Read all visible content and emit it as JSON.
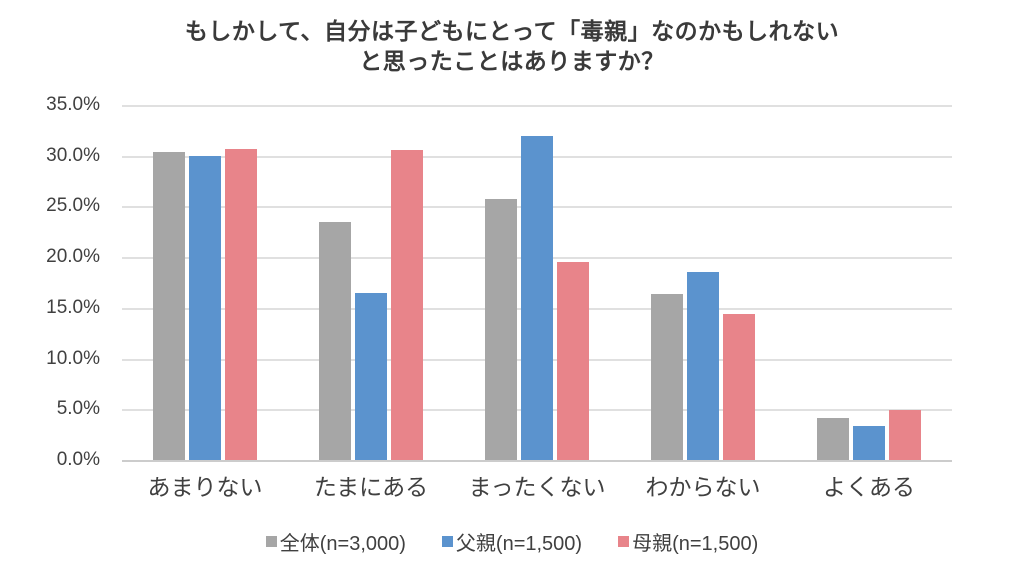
{
  "chart_data": {
    "type": "bar",
    "title_line1": "もしかして、自分は子どもにとって「毒親」なのかもしれない",
    "title_line2": "と思ったことはありますか？",
    "categories": [
      "あまりない",
      "たまにある",
      "まったくない",
      "わからない",
      "よくある"
    ],
    "series": [
      {
        "name": "全体(n=3,000)",
        "color": "#a6a6a6",
        "values": [
          30.4,
          23.5,
          25.7,
          16.4,
          4.1
        ]
      },
      {
        "name": "父親(n=1,500)",
        "color": "#5b93ce",
        "values": [
          30.0,
          16.5,
          31.9,
          18.5,
          3.4
        ]
      },
      {
        "name": "母親(n=1,500)",
        "color": "#e8848a",
        "values": [
          30.7,
          30.6,
          19.5,
          14.4,
          4.9
        ]
      }
    ],
    "ylabel": "",
    "xlabel": "",
    "ylim": [
      0,
      35
    ],
    "y_tick_step": 5,
    "y_tick_labels": [
      "35.0%",
      "30.0%",
      "25.0%",
      "20.0%",
      "15.0%",
      "10.0%",
      "5.0%",
      "0.0%"
    ],
    "grid": true,
    "gridline_color": "#e0e0e0",
    "axis_line_color": "#cccccc",
    "legend_position": "bottom",
    "title_color": "#3a3a3a",
    "tick_label_color": "#404040"
  }
}
